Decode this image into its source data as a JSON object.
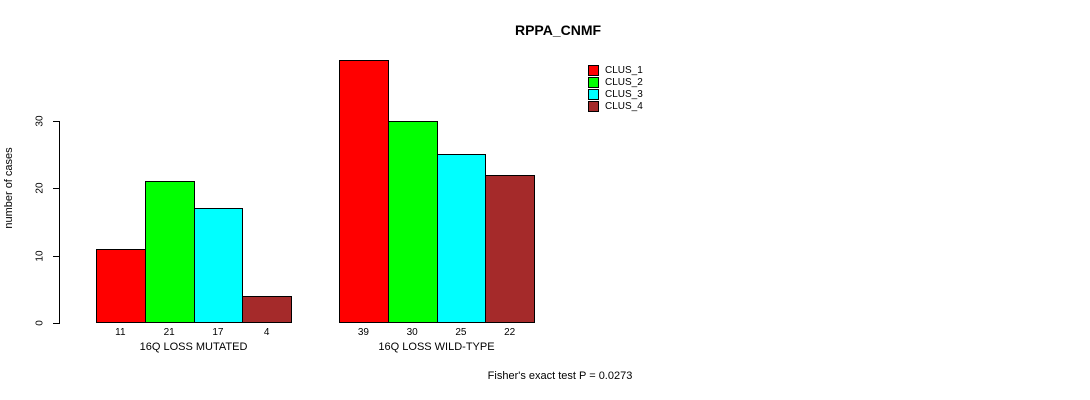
{
  "chart_data": {
    "type": "bar",
    "title": "RPPA_CNMF",
    "ylabel": "number of cases",
    "xlabel": "",
    "categories": [
      "16Q LOSS MUTATED",
      "16Q LOSS WILD-TYPE"
    ],
    "series": [
      {
        "name": "CLUS_1",
        "color": "#FF0000",
        "values": [
          11,
          39
        ]
      },
      {
        "name": "CLUS_2",
        "color": "#00FF00",
        "values": [
          21,
          30
        ]
      },
      {
        "name": "CLUS_3",
        "color": "#00FFFF",
        "values": [
          17,
          25
        ]
      },
      {
        "name": "CLUS_4",
        "color": "#A52A2A",
        "values": [
          4,
          22
        ]
      }
    ],
    "yticks": [
      0,
      10,
      20,
      30
    ],
    "ylim": [
      0,
      39
    ],
    "grid": false,
    "bar_value_labels": true,
    "legend_position": "top-right",
    "annotation": "Fisher's exact test P = 0.0273",
    "background_color": "#FFFFFF",
    "axis_color": "#000000"
  }
}
